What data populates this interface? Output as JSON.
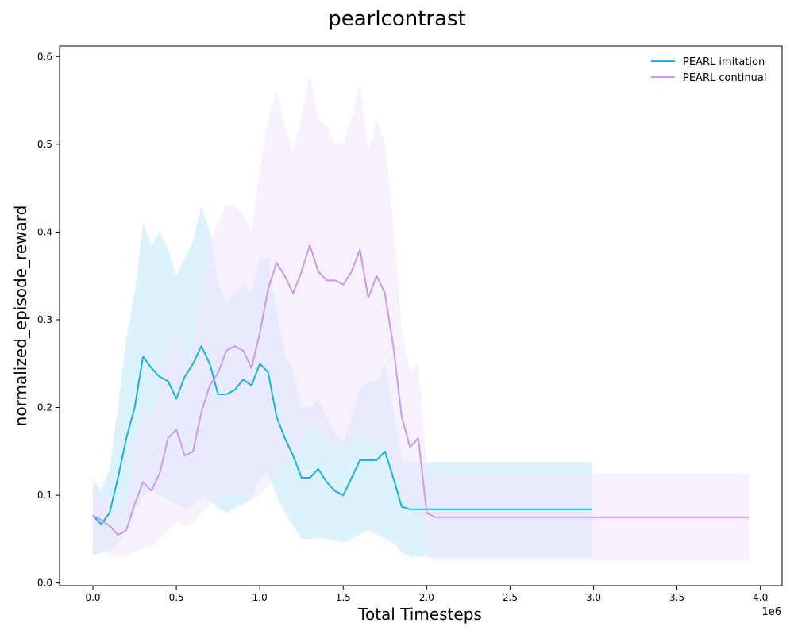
{
  "chart_data": {
    "type": "line",
    "title": "pearlcontrast",
    "xlabel": "Total Timesteps",
    "ylabel": "normalized_episode_reward",
    "x_offset_label": "1e6",
    "xlim": [
      -0.2,
      4.13
    ],
    "ylim": [
      -0.003,
      0.612
    ],
    "xticks": [
      0.0,
      0.5,
      1.0,
      1.5,
      2.0,
      2.5,
      3.0,
      3.5,
      4.0
    ],
    "xtick_labels": [
      "0.0",
      "0.5",
      "1.0",
      "1.5",
      "2.0",
      "2.5",
      "3.0",
      "3.5",
      "4.0"
    ],
    "yticks": [
      0.0,
      0.1,
      0.2,
      0.3,
      0.4,
      0.5,
      0.6
    ],
    "ytick_labels": [
      "0.0",
      "0.1",
      "0.2",
      "0.3",
      "0.4",
      "0.5",
      "0.6"
    ],
    "grid": false,
    "legend_position": "top-right",
    "series": [
      {
        "name": "PEARL imitation",
        "color": "#1ab1e6",
        "band_color": "#bfe9f7",
        "x": [
          0.0,
          0.05,
          0.1,
          0.15,
          0.2,
          0.25,
          0.3,
          0.35,
          0.4,
          0.45,
          0.5,
          0.55,
          0.6,
          0.65,
          0.7,
          0.75,
          0.8,
          0.85,
          0.9,
          0.95,
          1.0,
          1.05,
          1.1,
          1.15,
          1.2,
          1.25,
          1.3,
          1.35,
          1.4,
          1.45,
          1.5,
          1.55,
          1.6,
          1.65,
          1.7,
          1.75,
          1.8,
          1.85,
          1.9,
          2.0,
          2.5,
          2.99
        ],
        "y": [
          0.077,
          0.067,
          0.08,
          0.12,
          0.165,
          0.2,
          0.258,
          0.245,
          0.235,
          0.23,
          0.21,
          0.235,
          0.25,
          0.27,
          0.25,
          0.215,
          0.215,
          0.22,
          0.232,
          0.225,
          0.25,
          0.24,
          0.19,
          0.165,
          0.145,
          0.12,
          0.12,
          0.13,
          0.115,
          0.105,
          0.1,
          0.12,
          0.14,
          0.14,
          0.14,
          0.15,
          0.12,
          0.087,
          0.084,
          0.084,
          0.084,
          0.084
        ],
        "lower": [
          0.032,
          0.034,
          0.038,
          0.045,
          0.06,
          0.08,
          0.1,
          0.105,
          0.1,
          0.095,
          0.09,
          0.085,
          0.088,
          0.1,
          0.095,
          0.085,
          0.08,
          0.085,
          0.09,
          0.095,
          0.12,
          0.125,
          0.1,
          0.08,
          0.065,
          0.05,
          0.05,
          0.052,
          0.05,
          0.048,
          0.046,
          0.05,
          0.055,
          0.06,
          0.055,
          0.05,
          0.045,
          0.035,
          0.03,
          0.03,
          0.03,
          0.03
        ],
        "upper": [
          0.12,
          0.105,
          0.13,
          0.2,
          0.28,
          0.33,
          0.41,
          0.385,
          0.4,
          0.38,
          0.35,
          0.37,
          0.39,
          0.43,
          0.4,
          0.34,
          0.32,
          0.33,
          0.34,
          0.33,
          0.37,
          0.37,
          0.31,
          0.26,
          0.24,
          0.2,
          0.2,
          0.21,
          0.19,
          0.17,
          0.16,
          0.19,
          0.22,
          0.23,
          0.23,
          0.25,
          0.2,
          0.14,
          0.138,
          0.138,
          0.138,
          0.138
        ]
      },
      {
        "name": "PEARL continual",
        "color": "#cc99f2",
        "band_color": "#f1e4fc",
        "x": [
          0.0,
          0.05,
          0.1,
          0.15,
          0.2,
          0.25,
          0.3,
          0.35,
          0.4,
          0.45,
          0.5,
          0.55,
          0.6,
          0.65,
          0.7,
          0.75,
          0.8,
          0.85,
          0.9,
          0.95,
          1.0,
          1.05,
          1.1,
          1.15,
          1.2,
          1.25,
          1.3,
          1.35,
          1.4,
          1.45,
          1.5,
          1.55,
          1.6,
          1.65,
          1.7,
          1.75,
          1.8,
          1.85,
          1.9,
          1.95,
          2.0,
          2.05,
          2.5,
          3.0,
          3.5,
          3.93
        ],
        "y": [
          0.077,
          0.072,
          0.065,
          0.055,
          0.06,
          0.09,
          0.115,
          0.105,
          0.125,
          0.165,
          0.175,
          0.145,
          0.15,
          0.195,
          0.225,
          0.24,
          0.265,
          0.27,
          0.265,
          0.245,
          0.285,
          0.335,
          0.365,
          0.35,
          0.33,
          0.355,
          0.385,
          0.355,
          0.345,
          0.345,
          0.34,
          0.355,
          0.38,
          0.325,
          0.35,
          0.33,
          0.27,
          0.19,
          0.155,
          0.165,
          0.08,
          0.075,
          0.075,
          0.075,
          0.075,
          0.075
        ],
        "lower": [
          0.04,
          0.038,
          0.034,
          0.03,
          0.03,
          0.035,
          0.04,
          0.042,
          0.05,
          0.06,
          0.07,
          0.065,
          0.068,
          0.08,
          0.09,
          0.095,
          0.1,
          0.1,
          0.098,
          0.095,
          0.1,
          0.11,
          0.13,
          0.14,
          0.145,
          0.16,
          0.18,
          0.17,
          0.16,
          0.155,
          0.15,
          0.16,
          0.17,
          0.16,
          0.165,
          0.155,
          0.13,
          0.1,
          0.085,
          0.09,
          0.03,
          0.025,
          0.025,
          0.025,
          0.025,
          0.025
        ],
        "upper": [
          0.11,
          0.1,
          0.095,
          0.08,
          0.09,
          0.15,
          0.2,
          0.19,
          0.22,
          0.27,
          0.29,
          0.25,
          0.27,
          0.34,
          0.39,
          0.41,
          0.43,
          0.43,
          0.42,
          0.4,
          0.47,
          0.53,
          0.56,
          0.52,
          0.49,
          0.53,
          0.58,
          0.53,
          0.52,
          0.5,
          0.5,
          0.53,
          0.57,
          0.49,
          0.53,
          0.5,
          0.41,
          0.29,
          0.24,
          0.25,
          0.13,
          0.125,
          0.125,
          0.125,
          0.125,
          0.125
        ]
      }
    ]
  }
}
